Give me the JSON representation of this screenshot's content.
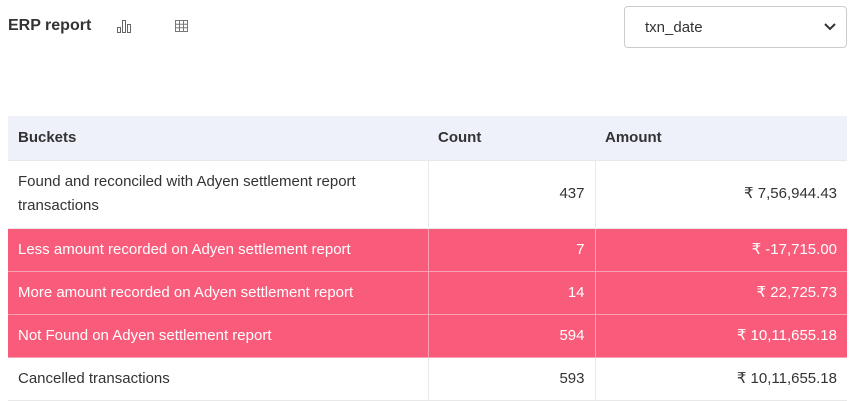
{
  "header": {
    "title": "ERP report",
    "chart_icon": "bar-chart-icon",
    "table_icon": "grid-table-icon"
  },
  "select": {
    "value": "txn_date"
  },
  "table": {
    "columns": [
      "Buckets",
      "Count",
      "Amount"
    ],
    "rows": [
      {
        "bucket": "Found and reconciled with Adyen settlement report transactions",
        "count": "437",
        "amount": "₹ 7,56,944.43",
        "highlight": false
      },
      {
        "bucket": "Less amount recorded on Adyen settlement report",
        "count": "7",
        "amount": "₹ -17,715.00",
        "highlight": true
      },
      {
        "bucket": "More amount recorded on Adyen settlement report",
        "count": "14",
        "amount": "₹ 22,725.73",
        "highlight": true
      },
      {
        "bucket": "Not Found on Adyen settlement report",
        "count": "594",
        "amount": "₹ 10,11,655.18",
        "highlight": true
      },
      {
        "bucket": "Cancelled transactions",
        "count": "593",
        "amount": "₹ 10,11,655.18",
        "highlight": false
      }
    ]
  },
  "colors": {
    "highlight": "#f95c7b",
    "header_bg": "#eef1f9"
  }
}
